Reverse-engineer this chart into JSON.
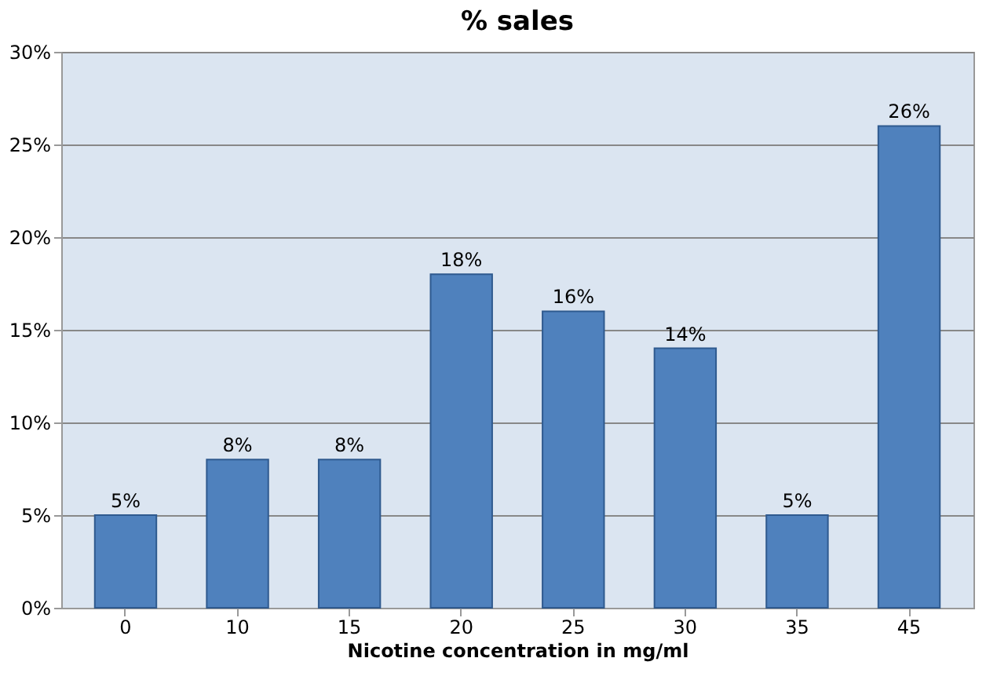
{
  "chart_data": {
    "type": "bar",
    "title": "% sales",
    "xlabel": "Nicotine concentration in mg/ml",
    "categories": [
      "0",
      "10",
      "15",
      "20",
      "25",
      "30",
      "35",
      "45"
    ],
    "values": [
      5,
      8,
      8,
      18,
      16,
      14,
      5,
      26
    ],
    "value_labels": [
      "5%",
      "8%",
      "8%",
      "18%",
      "16%",
      "14%",
      "5%",
      "26%"
    ],
    "color": "#4f81bd",
    "ylim": [
      0,
      30
    ],
    "yticks": [
      {
        "value": 0,
        "label": "0%"
      },
      {
        "value": 5,
        "label": "5%"
      },
      {
        "value": 10,
        "label": "10%"
      },
      {
        "value": 15,
        "label": "15%"
      },
      {
        "value": 20,
        "label": "20%"
      },
      {
        "value": 25,
        "label": "25%"
      },
      {
        "value": 30,
        "label": "30%"
      }
    ],
    "grid": "y"
  }
}
